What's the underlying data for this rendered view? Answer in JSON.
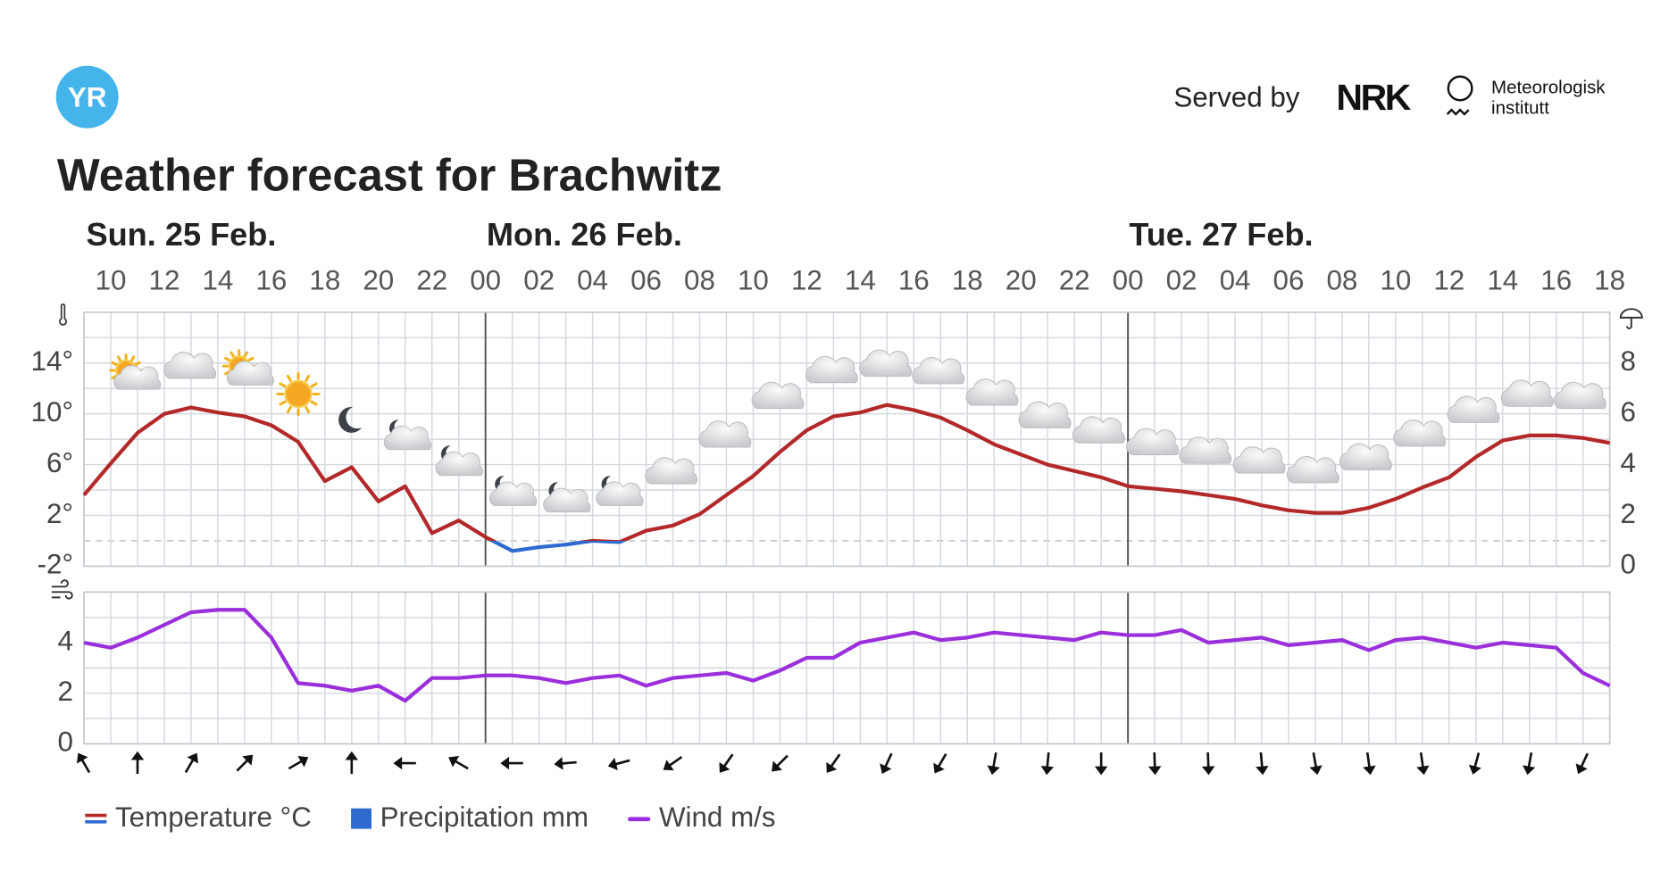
{
  "header": {
    "logo": "YR",
    "served_by": "Served by",
    "nrk": "NRK",
    "met_line1": "Meteorologisk",
    "met_line2": "institutt"
  },
  "chart_data": [
    {
      "type": "line",
      "title": "Weather forecast for Brachwitz",
      "days": [
        "Sun. 25 Feb.",
        "Mon. 26 Feb.",
        "Tue. 27 Feb."
      ],
      "categories": [
        null,
        "10",
        null,
        "12",
        null,
        "14",
        null,
        "16",
        null,
        "18",
        null,
        "20",
        null,
        "22",
        null,
        "00",
        null,
        "02",
        null,
        "04",
        null,
        "06",
        null,
        "08",
        null,
        "10",
        null,
        "12",
        null,
        "14",
        null,
        "16",
        null,
        "18",
        null,
        "20",
        null,
        "22",
        null,
        "00",
        null,
        "02",
        null,
        "04",
        null,
        "06",
        null,
        "08",
        null,
        "10",
        null,
        "12",
        null,
        "14",
        null,
        "16",
        null,
        "18"
      ],
      "series": [
        {
          "name": "Temperature °C",
          "color": "#b3292a",
          "below_zero_color": "#2e6bcf",
          "values": [
            3.6,
            6.1,
            8.5,
            10,
            10.5,
            10.1,
            9.8,
            9.1,
            7.8,
            4.7,
            5.8,
            3.1,
            4.3,
            0.6,
            1.6,
            0.3,
            -0.8,
            -0.5,
            -0.3,
            0,
            -0.1,
            0.8,
            1.2,
            2.1,
            3.6,
            5.1,
            7,
            8.7,
            9.8,
            10.1,
            10.7,
            10.3,
            9.7,
            8.7,
            7.6,
            6.8,
            6,
            5.5,
            5,
            4.3,
            4.1,
            3.9,
            3.6,
            3.3,
            2.8,
            2.4,
            2.2,
            2.2,
            2.6,
            3.3,
            4.2,
            5,
            6.6,
            7.9,
            8.3,
            8.3,
            8.1,
            7.7
          ]
        },
        {
          "name": "Precipitation mm",
          "color": "#2e6bcf",
          "axis": "y2",
          "values": [
            0,
            0,
            0,
            0,
            0,
            0,
            0,
            0,
            0,
            0,
            0,
            0,
            0,
            0,
            0,
            0,
            0,
            0,
            0,
            0,
            0,
            0,
            0,
            0,
            0,
            0,
            0,
            0,
            0,
            0,
            0,
            0,
            0,
            0,
            0,
            0,
            0,
            0,
            0,
            0,
            0,
            0,
            0,
            0,
            0,
            0,
            0,
            0,
            0,
            0,
            0,
            0,
            0,
            0,
            0,
            0,
            0,
            0
          ]
        }
      ],
      "ylim": [
        -2,
        18
      ],
      "yticks": [
        {
          "value": -2,
          "label": "-2°"
        },
        {
          "value": 2,
          "label": "2°"
        },
        {
          "value": 6,
          "label": "6°"
        },
        {
          "value": 10,
          "label": "10°"
        },
        {
          "value": 14,
          "label": "14°"
        }
      ],
      "yminor": [
        0,
        4,
        8,
        12,
        16,
        18
      ],
      "y2lim": [
        0,
        10
      ],
      "y2ticks": [
        0,
        2,
        4,
        6,
        8
      ],
      "grid": true
    },
    {
      "type": "line",
      "series": [
        {
          "name": "Wind m/s",
          "color": "#9a2fdb",
          "values": [
            4.0,
            3.8,
            4.2,
            4.7,
            5.2,
            5.3,
            5.3,
            4.2,
            2.4,
            2.3,
            2.1,
            2.3,
            1.7,
            2.6,
            2.6,
            2.7,
            2.7,
            2.6,
            2.4,
            2.6,
            2.7,
            2.3,
            2.6,
            2.7,
            2.8,
            2.5,
            2.9,
            3.4,
            3.4,
            4.0,
            4.2,
            4.4,
            4.1,
            4.2,
            4.4,
            4.3,
            4.2,
            4.1,
            4.4,
            4.3,
            4.3,
            4.5,
            4.0,
            4.1,
            4.2,
            3.9,
            4.0,
            4.1,
            3.7,
            4.1,
            4.2,
            4.0,
            3.8,
            4.0,
            3.9,
            3.8,
            2.8,
            2.3
          ]
        }
      ],
      "ylim": [
        0,
        6
      ],
      "yticks": [
        0,
        2,
        4
      ],
      "yminor": [
        1,
        3,
        5,
        6
      ],
      "grid": true
    }
  ]
}
